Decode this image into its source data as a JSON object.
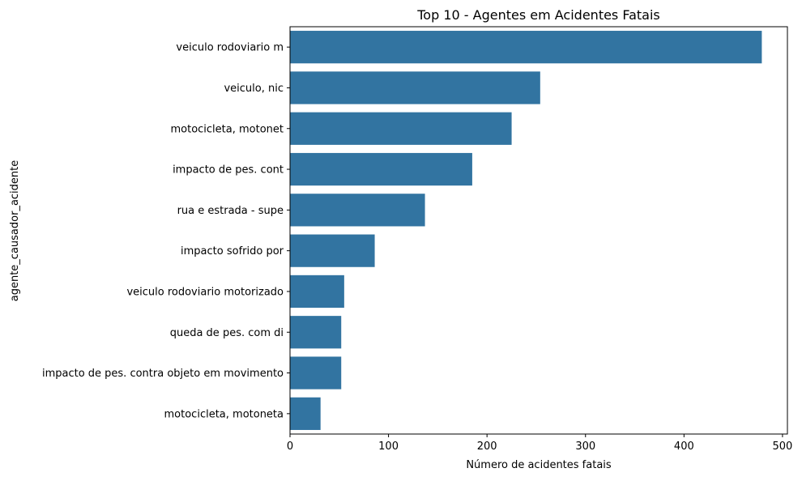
{
  "chart_data": {
    "type": "bar",
    "orientation": "horizontal",
    "title": "Top 10 - Agentes em Acidentes Fatais",
    "xlabel": "Número de acidentes fatais",
    "ylabel": "agente_causador_acidente",
    "categories": [
      "veiculo rodoviario m",
      "veiculo, nic",
      "motocicleta, motonet",
      "impacto de pes. cont",
      "rua e estrada - supe",
      "impacto sofrido por",
      "veiculo rodoviario motorizado",
      "queda de pes. com di",
      "impacto de pes. contra objeto em movimento",
      "motocicleta, motoneta"
    ],
    "values": [
      479,
      254,
      225,
      185,
      137,
      86,
      55,
      52,
      52,
      31
    ],
    "xlim": [
      0,
      505
    ],
    "xticks": [
      0,
      100,
      200,
      300,
      400,
      500
    ],
    "bar_color": "#3274a1",
    "grid": false
  }
}
